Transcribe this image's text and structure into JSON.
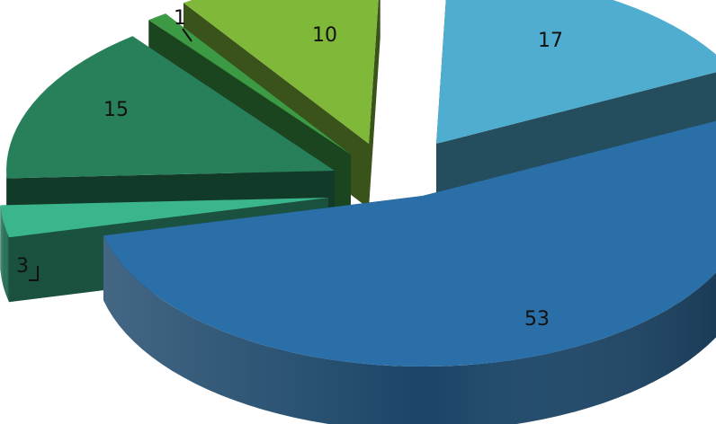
{
  "chart_data": {
    "type": "pie",
    "variant": "3d-exploded",
    "categories": [
      "",
      "",
      "",
      "",
      "",
      ""
    ],
    "values": [
      17,
      53,
      3,
      15,
      1,
      10
    ],
    "data_labels": [
      "17",
      "53",
      "3",
      "15",
      "1",
      "10"
    ],
    "colors": [
      "#4FADCF",
      "#2A6FA8",
      "#3BB58C",
      "#27805A",
      "#3C9A44",
      "#80B83A"
    ],
    "title": "",
    "legend": "none"
  }
}
